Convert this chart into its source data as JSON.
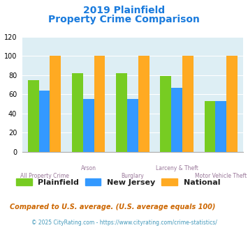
{
  "title_line1": "2019 Plainfield",
  "title_line2": "Property Crime Comparison",
  "title_color": "#1a7bdd",
  "categories": [
    "All Property Crime",
    "Arson",
    "Burglary",
    "Larceny & Theft",
    "Motor Vehicle Theft"
  ],
  "plainfield": [
    75,
    82,
    82,
    79,
    53
  ],
  "new_jersey": [
    64,
    55,
    55,
    67,
    53
  ],
  "national": [
    100,
    100,
    100,
    100,
    100
  ],
  "plainfield_color": "#77cc22",
  "nj_color": "#3399ff",
  "national_color": "#ffaa22",
  "ylim": [
    0,
    120
  ],
  "yticks": [
    0,
    20,
    40,
    60,
    80,
    100,
    120
  ],
  "plot_bg": "#ddeef4",
  "grid_color": "#ffffff",
  "legend_labels": [
    "Plainfield",
    "New Jersey",
    "National"
  ],
  "footnote1": "Compared to U.S. average. (U.S. average equals 100)",
  "footnote2": "© 2025 CityRating.com - https://www.cityrating.com/crime-statistics/",
  "footnote1_color": "#cc6600",
  "footnote2_color": "#4499bb",
  "xlabel_color": "#997799",
  "bar_width": 0.25
}
